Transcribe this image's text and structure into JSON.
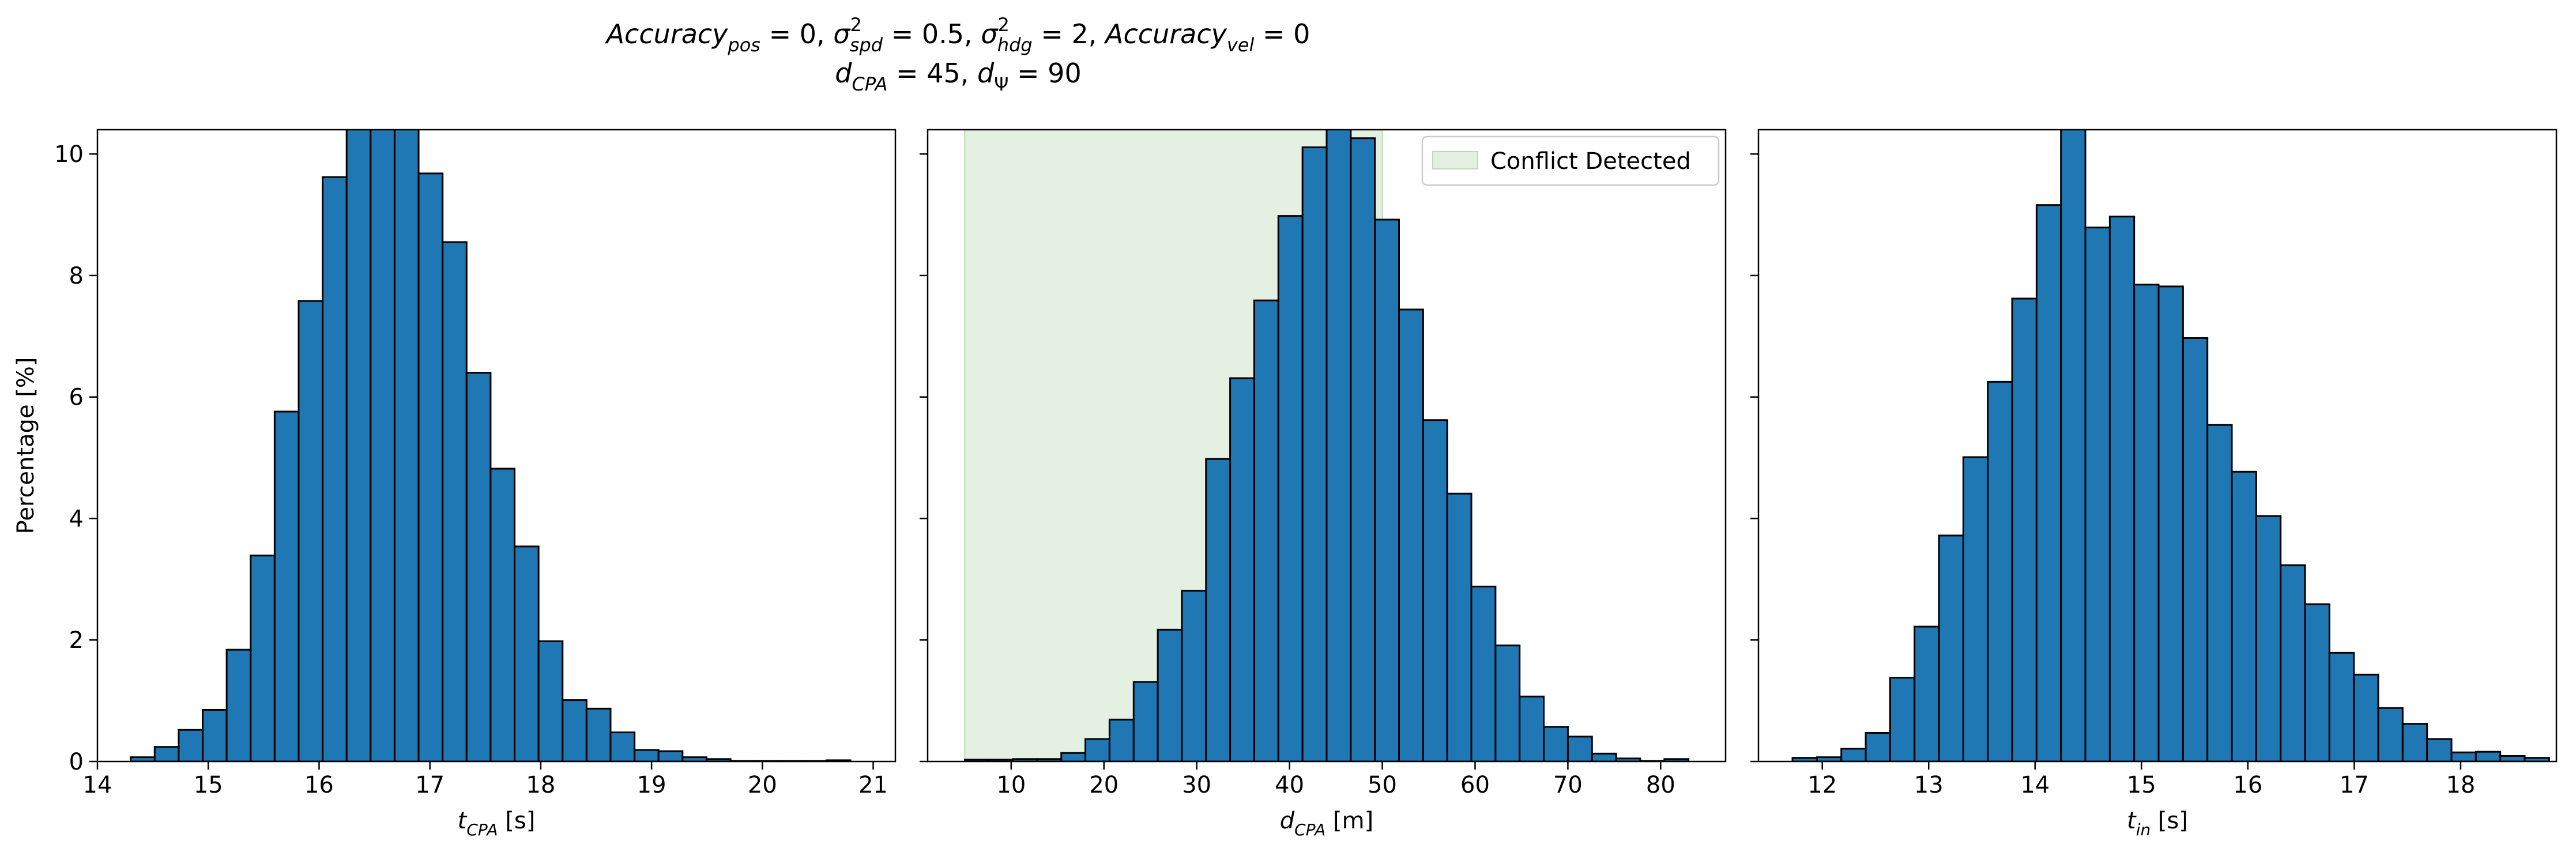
{
  "title": {
    "line1_parts": [
      {
        "text": "Accuracy",
        "style": "italic"
      },
      {
        "text": "pos",
        "style": "italic-sub"
      },
      {
        "text": " = 0, ",
        "style": "normal"
      },
      {
        "text": "σ",
        "style": "italic"
      },
      {
        "text": "2",
        "style": "sup"
      },
      {
        "text": "spd",
        "style": "italic-sub"
      },
      {
        "text": " = 0.5, ",
        "style": "normal"
      },
      {
        "text": "σ",
        "style": "italic"
      },
      {
        "text": "2",
        "style": "sup"
      },
      {
        "text": "hdg",
        "style": "italic-sub"
      },
      {
        "text": " = 2, ",
        "style": "normal"
      },
      {
        "text": "Accuracy",
        "style": "italic"
      },
      {
        "text": "vel",
        "style": "italic-sub"
      },
      {
        "text": " = 0",
        "style": "normal"
      }
    ],
    "line2_parts": [
      {
        "text": "d",
        "style": "italic"
      },
      {
        "text": "CPA",
        "style": "italic-sub"
      },
      {
        "text": " = 45, ",
        "style": "normal"
      },
      {
        "text": "d",
        "style": "italic"
      },
      {
        "text": "Ψ",
        "style": "sub"
      },
      {
        "text": " = 90",
        "style": "normal"
      }
    ]
  },
  "colors": {
    "bar_fill": "#1f77b4",
    "bar_edge": "#000000",
    "conflict_fill": "#e4f0e2",
    "conflict_edge": "#bcd9b6"
  },
  "chart_data": [
    {
      "type": "bar",
      "ylabel": "Percentage [%]",
      "xlabel_parts": [
        {
          "text": "t",
          "style": "italic"
        },
        {
          "text": "CPA",
          "style": "italic-sub"
        },
        {
          "text": " [s]",
          "style": "normal"
        }
      ],
      "xlim": [
        14.0,
        21.2
      ],
      "ylim": [
        0,
        10.4
      ],
      "xticks": [
        14,
        15,
        16,
        17,
        18,
        19,
        20,
        21
      ],
      "yticks": [
        0,
        2,
        4,
        6,
        8,
        10
      ],
      "bins": {
        "start": 14.3,
        "width": 0.2165
      },
      "values": [
        0.07,
        0.24,
        0.52,
        0.85,
        1.84,
        3.39,
        5.76,
        7.58,
        9.62,
        10.6,
        10.6,
        10.6,
        9.68,
        8.55,
        6.4,
        4.82,
        3.54,
        1.98,
        1.01,
        0.87,
        0.48,
        0.19,
        0.17,
        0.07,
        0.04,
        0.01,
        0.01,
        0.01,
        0.01,
        0.02
      ]
    },
    {
      "type": "bar",
      "ylabel": "",
      "xlabel_parts": [
        {
          "text": "d",
          "style": "italic"
        },
        {
          "text": "CPA",
          "style": "italic-sub"
        },
        {
          "text": " [m]",
          "style": "normal"
        }
      ],
      "xlim": [
        1.0,
        87.0
      ],
      "ylim": [
        0,
        10.4
      ],
      "xticks": [
        10,
        20,
        30,
        40,
        50,
        60,
        70,
        80
      ],
      "yticks": [
        0,
        2,
        4,
        6,
        8,
        10
      ],
      "bins": {
        "start": 5.0,
        "width": 2.6
      },
      "values": [
        0.03,
        0.03,
        0.04,
        0.04,
        0.14,
        0.37,
        0.69,
        1.31,
        2.17,
        2.81,
        4.98,
        6.31,
        7.59,
        8.98,
        10.11,
        10.43,
        10.26,
        8.92,
        7.44,
        5.62,
        4.41,
        2.88,
        1.91,
        1.07,
        0.57,
        0.41,
        0.13,
        0.05,
        0.01,
        0.04
      ],
      "shaded_region": {
        "x": [
          5.0,
          50.0
        ],
        "label": "Conflict Detected"
      },
      "legend": {
        "position": "top-right",
        "label": "Conflict Detected"
      }
    },
    {
      "type": "bar",
      "ylabel": "",
      "xlabel_parts": [
        {
          "text": "t",
          "style": "italic"
        },
        {
          "text": "in",
          "style": "italic-sub"
        },
        {
          "text": " [s]",
          "style": "normal"
        }
      ],
      "xlim": [
        11.4,
        18.9
      ],
      "ylim": [
        0,
        10.4
      ],
      "xticks": [
        12,
        13,
        14,
        15,
        16,
        17,
        18
      ],
      "yticks": [
        0,
        2,
        4,
        6,
        8,
        10
      ],
      "bins": {
        "start": 11.72,
        "width": 0.2294
      },
      "values": [
        0.06,
        0.07,
        0.21,
        0.47,
        1.38,
        2.22,
        3.72,
        5.01,
        6.25,
        7.62,
        9.16,
        10.5,
        8.79,
        8.97,
        7.85,
        7.82,
        6.97,
        5.54,
        4.77,
        4.04,
        3.23,
        2.59,
        1.79,
        1.43,
        0.88,
        0.62,
        0.37,
        0.15,
        0.16,
        0.09,
        0.06
      ]
    }
  ]
}
